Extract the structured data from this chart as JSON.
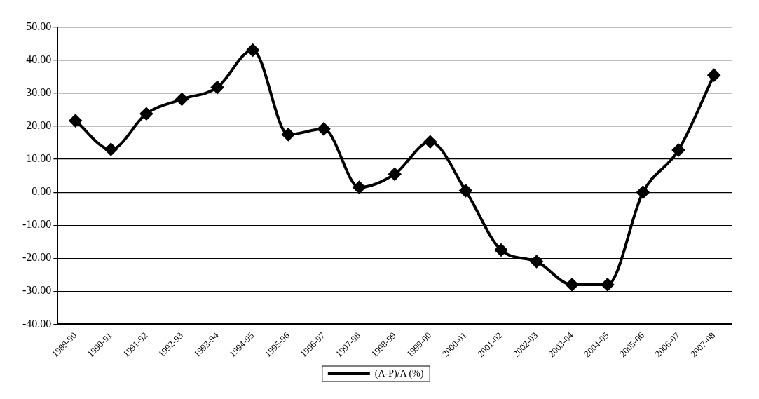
{
  "chart_data": {
    "type": "line",
    "categories": [
      "1989-90",
      "1990-91",
      "1991-92",
      "1992-93",
      "1993-94",
      "1994-95",
      "1995-96",
      "1996-97",
      "1997-98",
      "1998-99",
      "1999-00",
      "2000-01",
      "2001-02",
      "2002-03",
      "2003-04",
      "2004-05",
      "2005-06",
      "2006-07",
      "2007-08"
    ],
    "series": [
      {
        "name": "(A-P)/A (%)",
        "color": "#000000",
        "values": [
          21.7,
          13.0,
          23.8,
          28.2,
          31.8,
          43.1,
          17.5,
          19.2,
          1.5,
          5.5,
          15.3,
          0.5,
          -17.5,
          -21.0,
          -28.0,
          -28.0,
          0.0,
          12.8,
          35.5
        ]
      }
    ],
    "ylim": [
      -40,
      50
    ],
    "yticks": [
      {
        "value": -40,
        "label": "-40.00"
      },
      {
        "value": -30,
        "label": "-30.00"
      },
      {
        "value": -20,
        "label": "-20.00"
      },
      {
        "value": -10,
        "label": "-10.00"
      },
      {
        "value": 0,
        "label": "0.00"
      },
      {
        "value": 10,
        "label": "10.00"
      },
      {
        "value": 20,
        "label": "20.00"
      },
      {
        "value": 30,
        "label": "30.00"
      },
      {
        "value": 40,
        "label": "40.00"
      },
      {
        "value": 50,
        "label": "50.00"
      }
    ],
    "grid": "y",
    "legend": "bottom",
    "marker": "diamond",
    "line_style": "solid"
  }
}
